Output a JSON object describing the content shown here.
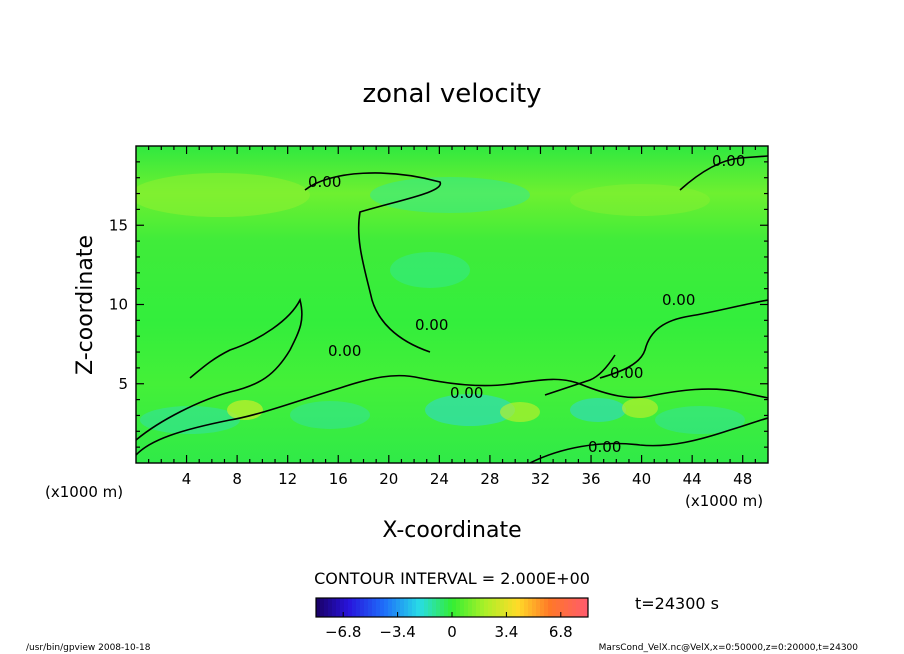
{
  "chart_data": {
    "type": "heatmap",
    "title": "zonal velocity",
    "xlabel": "X-coordinate",
    "ylabel": "Z-coordinate",
    "x_unit": "(x1000 m)",
    "y_unit": "(x1000 m)",
    "xlim": [
      0,
      50
    ],
    "ylim": [
      0,
      20
    ],
    "x_ticks": [
      4,
      8,
      12,
      16,
      20,
      24,
      28,
      32,
      36,
      40,
      44,
      48
    ],
    "y_ticks": [
      5,
      10,
      15
    ],
    "contour_interval_text": "CONTOUR INTERVAL = 2.000E+00",
    "contour_label": "0.00",
    "time_label": "t=24300 s",
    "colorbar": {
      "range": [
        -8.5,
        8.5
      ],
      "ticks": [
        -6.8,
        -3.4,
        0,
        3.4,
        6.8
      ],
      "tick_labels": [
        "−6.8",
        "−3.4",
        "0",
        "3.4",
        "6.8"
      ]
    },
    "footer_left": "/usr/bin/gpview   2008-10-18",
    "footer_right": "MarsCond_VelX.nc@VelX,x=0:50000,z=0:20000,t=24300"
  },
  "colors": {
    "field_base": "#33ee33",
    "colormap_low": "#1a0070",
    "colormap_zero": "#33ee33",
    "colormap_high": "#ff4444"
  }
}
